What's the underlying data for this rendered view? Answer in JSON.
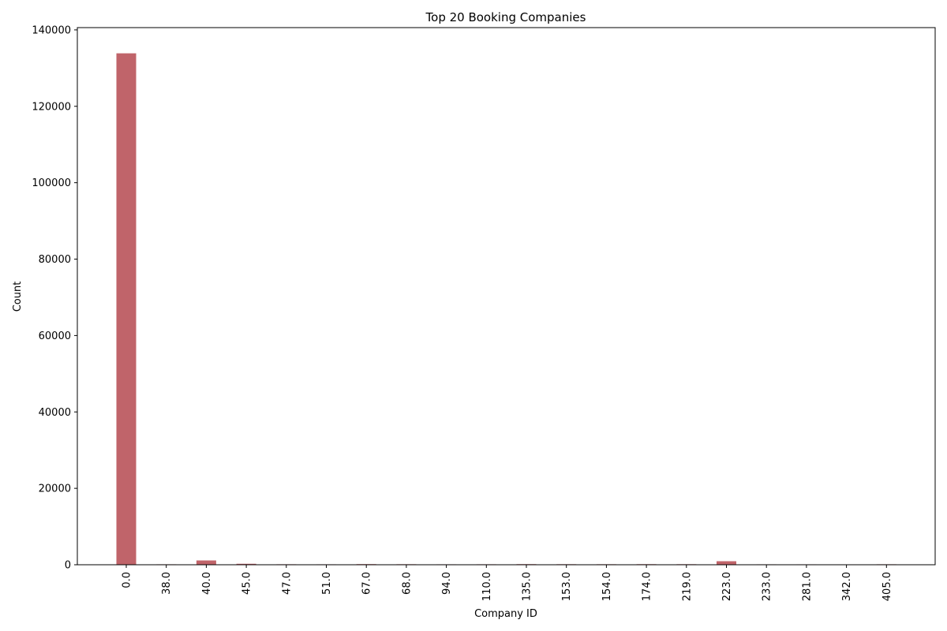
{
  "chart_data": {
    "type": "bar",
    "title": "Top 20 Booking Companies",
    "xlabel": "Company ID",
    "ylabel": "Count",
    "categories": [
      "0.0",
      "38.0",
      "40.0",
      "45.0",
      "47.0",
      "51.0",
      "67.0",
      "68.0",
      "94.0",
      "110.0",
      "135.0",
      "153.0",
      "154.0",
      "174.0",
      "219.0",
      "223.0",
      "233.0",
      "281.0",
      "342.0",
      "405.0"
    ],
    "values": [
      133870,
      119,
      1127,
      253,
      125,
      114,
      162,
      135,
      114,
      122,
      157,
      140,
      133,
      149,
      141,
      927,
      113,
      109,
      104,
      126
    ],
    "ylim": [
      0,
      140600
    ],
    "yticks": [
      0,
      20000,
      40000,
      60000,
      80000,
      100000,
      120000,
      140000
    ],
    "ytick_labels": [
      "0",
      "20000",
      "40000",
      "60000",
      "80000",
      "100000",
      "120000",
      "140000"
    ],
    "bar_color": "#c0646a",
    "grid": false,
    "legend": "none"
  }
}
